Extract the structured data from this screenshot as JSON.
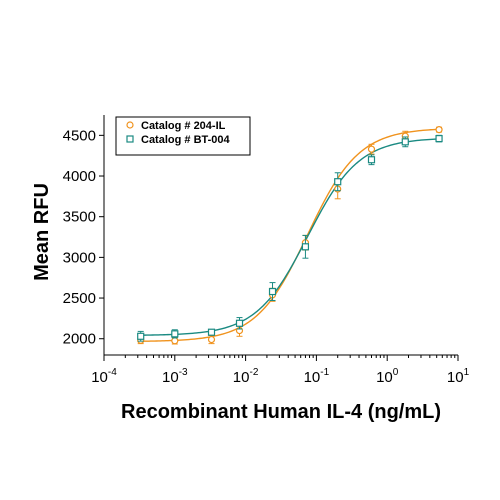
{
  "chart_data": {
    "type": "scatter",
    "xlabel": "Recombinant Human IL-4 (ng/mL)",
    "ylabel": "Mean RFU",
    "x_scale": "log",
    "xlim": [
      0.0001,
      10
    ],
    "ylim": [
      1800,
      4750
    ],
    "x_ticks": [
      {
        "value": 0.0001,
        "base": "10",
        "exp": "-4"
      },
      {
        "value": 0.001,
        "base": "10",
        "exp": "-3"
      },
      {
        "value": 0.01,
        "base": "10",
        "exp": "-2"
      },
      {
        "value": 0.1,
        "base": "10",
        "exp": "-1"
      },
      {
        "value": 1,
        "base": "10",
        "exp": "0"
      },
      {
        "value": 10,
        "base": "10",
        "exp": "1"
      }
    ],
    "y_ticks": [
      2000,
      2500,
      3000,
      3500,
      4000,
      4500
    ],
    "legend_position": "top-left",
    "series": [
      {
        "name": "Catalog # 204-IL",
        "color": "#f0931e",
        "marker": "circle",
        "x": [
          0.00033,
          0.001,
          0.0033,
          0.0082,
          0.024,
          0.07,
          0.2,
          0.6,
          1.8,
          5.4
        ],
        "y": [
          1980,
          1975,
          1990,
          2100,
          2540,
          3180,
          3840,
          4330,
          4490,
          4570
        ],
        "err": [
          40,
          40,
          50,
          70,
          80,
          90,
          120,
          60,
          60,
          30
        ],
        "fit": {
          "bottom": 1965,
          "top": 4590,
          "ec50": 0.075,
          "hill": 1.2
        }
      },
      {
        "name": "Catalog # BT-004",
        "color": "#1a8a82",
        "marker": "square",
        "x": [
          0.00033,
          0.001,
          0.0033,
          0.0082,
          0.024,
          0.07,
          0.2,
          0.6,
          1.8,
          5.4
        ],
        "y": [
          2030,
          2060,
          2080,
          2190,
          2580,
          3130,
          3930,
          4200,
          4420,
          4460
        ],
        "err": [
          60,
          50,
          30,
          70,
          110,
          140,
          110,
          60,
          60,
          40
        ],
        "fit": {
          "bottom": 2040,
          "top": 4470,
          "ec50": 0.075,
          "hill": 1.2
        }
      }
    ]
  }
}
